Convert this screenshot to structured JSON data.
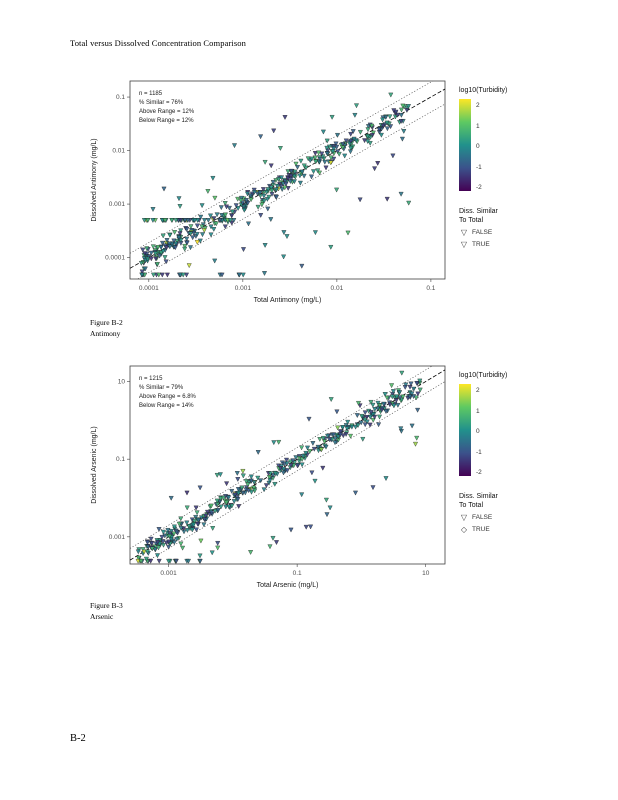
{
  "page": {
    "heading": "Total versus Dissolved Concentration Comparison",
    "page_number": "B-2"
  },
  "figures": [
    {
      "caption_line1": "Figure B-2",
      "caption_line2": "Antimony"
    },
    {
      "caption_line1": "Figure B-3",
      "caption_line2": "Arsenic"
    }
  ],
  "chart_data": [
    {
      "type": "scatter",
      "xlabel": "Total Antimony (mg/L)",
      "ylabel": "Dissolved Antimony (mg/L)",
      "x_scale": "log10",
      "y_scale": "log10",
      "x_range_log": [
        -4.2,
        -0.85
      ],
      "y_range_log": [
        -4.4,
        -0.7
      ],
      "x_ticks": [
        {
          "value": 0.0001,
          "label": "0.0001"
        },
        {
          "value": 0.001,
          "label": "0.001"
        },
        {
          "value": 0.01,
          "label": "0.01"
        },
        {
          "value": 0.1,
          "label": "0.1"
        }
      ],
      "y_ticks": [
        {
          "value": 0.0001,
          "label": "0.0001"
        },
        {
          "value": 0.001,
          "label": "0.001"
        },
        {
          "value": 0.01,
          "label": "0.01"
        },
        {
          "value": 0.1,
          "label": "0.1"
        }
      ],
      "stats_annotation": [
        "n = 1185",
        "% Similar = 76%",
        "Above Range = 12%",
        "Below Range = 12%"
      ],
      "reference_lines": {
        "one_to_one": "dashed",
        "range_band_log_offset": 0.28,
        "band_style": "dotted"
      },
      "marker": "triangle-down",
      "colorbar": {
        "title": "log10(Turbidity)",
        "ticks": [
          "2",
          "1",
          "0",
          "-1",
          "-2"
        ],
        "colors": [
          "#440154",
          "#3b528b",
          "#21918c",
          "#5ec962",
          "#fde725"
        ]
      },
      "shape_legend": {
        "title": [
          "Diss. Similar",
          "To Total"
        ],
        "entries": [
          {
            "label": "FALSE",
            "shape": "triangle-down"
          },
          {
            "label": "TRUE",
            "shape": "triangle-down"
          }
        ]
      },
      "render": {
        "seed": 7,
        "n_points": 420,
        "x_pow": 1.25,
        "noise_sd": 0.11,
        "below_frac": 0.09,
        "below_spread": 1.5,
        "above_frac": 0.05,
        "above_spread": 0.85,
        "dl_row": {
          "y_log": -3.3,
          "n": 42,
          "x_from": -4.05,
          "x_to": -3.05
        }
      }
    },
    {
      "type": "scatter",
      "xlabel": "Total Arsenic (mg/L)",
      "ylabel": "Dissolved Arsenic (mg/L)",
      "x_scale": "log10",
      "y_scale": "log10",
      "x_range_log": [
        -3.6,
        1.3
      ],
      "y_range_log": [
        -3.7,
        1.4
      ],
      "x_ticks": [
        {
          "value": 0.001,
          "label": "0.001"
        },
        {
          "value": 0.1,
          "label": "0.1"
        },
        {
          "value": 10,
          "label": "10"
        }
      ],
      "y_ticks": [
        {
          "value": 0.001,
          "label": "0.001"
        },
        {
          "value": 0.1,
          "label": "0.1"
        },
        {
          "value": 10,
          "label": "10"
        }
      ],
      "stats_annotation": [
        "n = 1215",
        "% Similar = 79%",
        "Above Range = 6.8%",
        "Below Range = 14%"
      ],
      "reference_lines": {
        "one_to_one": "dashed",
        "range_band_log_offset": 0.3,
        "band_style": "dotted"
      },
      "marker": "triangle-down",
      "colorbar": {
        "title": "log10(Turbidity)",
        "ticks": [
          "2",
          "1",
          "0",
          "-1",
          "-2"
        ],
        "colors": [
          "#440154",
          "#3b528b",
          "#21918c",
          "#5ec962",
          "#fde725"
        ]
      },
      "shape_legend": {
        "title": [
          "Diss. Similar",
          "To Total"
        ],
        "entries": [
          {
            "label": "FALSE",
            "shape": "triangle-down"
          },
          {
            "label": "TRUE",
            "shape": "diamond"
          }
        ]
      },
      "render": {
        "seed": 11,
        "n_points": 430,
        "x_pow": 1.1,
        "noise_sd": 0.13,
        "below_frac": 0.1,
        "below_spread": 1.7,
        "above_frac": 0.04,
        "above_spread": 0.8,
        "dl_row": null
      }
    }
  ]
}
